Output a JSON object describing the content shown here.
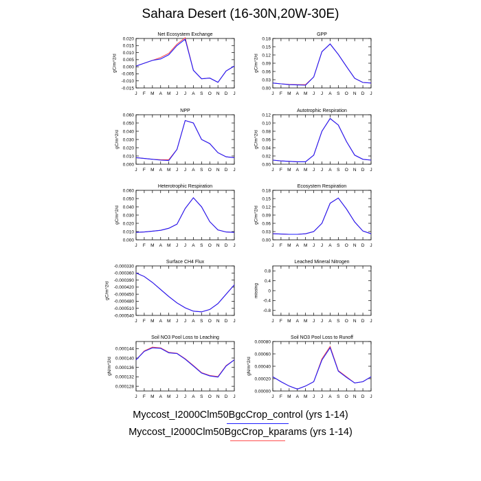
{
  "title": "Sahara Desert (16-30N,20W-30E)",
  "legend": [
    {
      "label": "Myccost_I2000Clm50BgcCrop_control (yrs 1-14)",
      "color": "#1a1aff"
    },
    {
      "label": "Myccost_I2000Clm50BgcCrop_kparams (yrs 1-14)",
      "color": "#ff4d4d"
    }
  ],
  "chart_data": [
    {
      "type": "line",
      "title": "Net Ecosystem Exchange",
      "ylabel": "gC/m^2/d",
      "categories": [
        "J",
        "F",
        "M",
        "A",
        "M",
        "J",
        "J",
        "A",
        "S",
        "O",
        "N",
        "D",
        "J"
      ],
      "ylim": [
        -0.015,
        0.02
      ],
      "yticks": [
        0.02,
        0.015,
        0.01,
        0.005,
        0.0,
        -0.005,
        -0.01,
        -0.015
      ],
      "ytick_labels": [
        "0.020",
        "0.015",
        "0.010",
        "0.005",
        "0.000",
        "-0.005",
        "-0.010",
        "-0.015"
      ],
      "series": [
        {
          "values": [
            0.0005,
            0.0025,
            0.0045,
            0.0055,
            0.0085,
            0.015,
            0.0195,
            -0.0025,
            -0.0085,
            -0.008,
            -0.011,
            -0.003,
            0.0005
          ]
        },
        {
          "values": [
            0.0005,
            0.0025,
            0.0045,
            0.0065,
            0.0095,
            0.016,
            0.0205,
            -0.0025,
            -0.0085,
            -0.008,
            -0.011,
            -0.003,
            0.0005
          ]
        }
      ]
    },
    {
      "type": "line",
      "title": "GPP",
      "ylabel": "gC/m^2/d",
      "categories": [
        "J",
        "F",
        "M",
        "A",
        "M",
        "J",
        "J",
        "A",
        "S",
        "O",
        "N",
        "D",
        "J"
      ],
      "ylim": [
        0,
        0.18
      ],
      "yticks": [
        0.18,
        0.15,
        0.12,
        0.09,
        0.06,
        0.03,
        0.0
      ],
      "ytick_labels": [
        "0.18",
        "0.15",
        "0.12",
        "0.09",
        "0.06",
        "0.03",
        "0.00"
      ],
      "series": [
        {
          "values": [
            0.018,
            0.015,
            0.012,
            0.011,
            0.01,
            0.04,
            0.132,
            0.16,
            0.122,
            0.078,
            0.035,
            0.02,
            0.018
          ]
        },
        {
          "values": [
            0.018,
            0.015,
            0.013,
            0.012,
            0.012,
            0.04,
            0.132,
            0.16,
            0.122,
            0.078,
            0.035,
            0.02,
            0.018
          ]
        }
      ]
    },
    {
      "type": "line",
      "title": "NPP",
      "ylabel": "gC/m^2/d",
      "categories": [
        "J",
        "F",
        "M",
        "A",
        "M",
        "J",
        "J",
        "A",
        "S",
        "O",
        "N",
        "D",
        "J"
      ],
      "ylim": [
        0,
        0.06
      ],
      "yticks": [
        0.06,
        0.05,
        0.04,
        0.03,
        0.02,
        0.01,
        0.0
      ],
      "ytick_labels": [
        "0.060",
        "0.050",
        "0.040",
        "0.030",
        "0.020",
        "0.010",
        "0.000"
      ],
      "series": [
        {
          "values": [
            0.008,
            0.007,
            0.006,
            0.005,
            0.0045,
            0.018,
            0.053,
            0.05,
            0.03,
            0.025,
            0.014,
            0.009,
            0.008
          ]
        },
        {
          "values": [
            0.008,
            0.007,
            0.006,
            0.0055,
            0.0055,
            0.018,
            0.053,
            0.05,
            0.03,
            0.025,
            0.014,
            0.009,
            0.008
          ]
        }
      ]
    },
    {
      "type": "line",
      "title": "Autotrophic Respiration",
      "ylabel": "gC/m^2/d",
      "categories": [
        "J",
        "F",
        "M",
        "A",
        "M",
        "J",
        "J",
        "A",
        "S",
        "O",
        "N",
        "D",
        "J"
      ],
      "ylim": [
        0,
        0.12
      ],
      "yticks": [
        0.12,
        0.1,
        0.08,
        0.06,
        0.04,
        0.02,
        0.0
      ],
      "ytick_labels": [
        "0.12",
        "0.10",
        "0.08",
        "0.06",
        "0.04",
        "0.02",
        "0.00"
      ],
      "series": [
        {
          "values": [
            0.01,
            0.008,
            0.007,
            0.006,
            0.006,
            0.022,
            0.08,
            0.111,
            0.095,
            0.055,
            0.022,
            0.012,
            0.01
          ]
        },
        {
          "values": [
            0.01,
            0.008,
            0.007,
            0.006,
            0.006,
            0.022,
            0.08,
            0.111,
            0.095,
            0.055,
            0.022,
            0.012,
            0.01
          ]
        }
      ]
    },
    {
      "type": "line",
      "title": "Heterotrophic Respiration",
      "ylabel": "gC/m^2/d",
      "categories": [
        "J",
        "F",
        "M",
        "A",
        "M",
        "J",
        "J",
        "A",
        "S",
        "O",
        "N",
        "D",
        "J"
      ],
      "ylim": [
        0,
        0.06
      ],
      "yticks": [
        0.06,
        0.05,
        0.04,
        0.03,
        0.02,
        0.01,
        0.0
      ],
      "ytick_labels": [
        "0.060",
        "0.050",
        "0.040",
        "0.030",
        "0.020",
        "0.010",
        "0.000"
      ],
      "series": [
        {
          "values": [
            0.009,
            0.0095,
            0.0105,
            0.0115,
            0.014,
            0.019,
            0.038,
            0.051,
            0.04,
            0.022,
            0.012,
            0.0095,
            0.009
          ]
        },
        {
          "values": [
            0.009,
            0.0095,
            0.0105,
            0.0115,
            0.014,
            0.019,
            0.038,
            0.051,
            0.04,
            0.022,
            0.012,
            0.0095,
            0.009
          ]
        }
      ]
    },
    {
      "type": "line",
      "title": "Ecosystem Respiration",
      "ylabel": "gC/m^2/d",
      "categories": [
        "J",
        "F",
        "M",
        "A",
        "M",
        "J",
        "J",
        "A",
        "S",
        "O",
        "N",
        "D",
        "J"
      ],
      "ylim": [
        0,
        0.18
      ],
      "yticks": [
        0.18,
        0.15,
        0.12,
        0.09,
        0.06,
        0.03,
        0.0
      ],
      "ytick_labels": [
        "0.18",
        "0.15",
        "0.12",
        "0.09",
        "0.06",
        "0.03",
        "0.00"
      ],
      "series": [
        {
          "values": [
            0.022,
            0.021,
            0.02,
            0.02,
            0.022,
            0.03,
            0.06,
            0.133,
            0.152,
            0.112,
            0.065,
            0.032,
            0.022
          ]
        },
        {
          "values": [
            0.022,
            0.021,
            0.02,
            0.02,
            0.022,
            0.03,
            0.06,
            0.133,
            0.152,
            0.112,
            0.065,
            0.032,
            0.022
          ]
        }
      ]
    },
    {
      "type": "line",
      "title": "Surface CH4 Flux",
      "ylabel": "gC/m^2/d",
      "categories": [
        "J",
        "F",
        "M",
        "A",
        "M",
        "J",
        "J",
        "A",
        "S",
        "O",
        "N",
        "D",
        "J"
      ],
      "ylim": [
        -0.00054,
        -0.00033
      ],
      "yticks": [
        -0.00033,
        -0.00036,
        -0.00039,
        -0.00042,
        -0.00045,
        -0.00048,
        -0.00051,
        -0.00054
      ],
      "ytick_labels": [
        "-0.000330",
        "-0.000360",
        "-0.000390",
        "-0.000420",
        "-0.000450",
        "-0.000480",
        "-0.000510",
        "-0.000540"
      ],
      "series": [
        {
          "values": [
            -0.00036,
            -0.000375,
            -0.0004,
            -0.00043,
            -0.00046,
            -0.000487,
            -0.000508,
            -0.000522,
            -0.000525,
            -0.000515,
            -0.00049,
            -0.00045,
            -0.00041
          ]
        },
        {
          "values": [
            -0.00036,
            -0.000375,
            -0.0004,
            -0.00043,
            -0.00046,
            -0.000487,
            -0.000508,
            -0.000522,
            -0.000525,
            -0.000515,
            -0.00049,
            -0.00045,
            -0.00041
          ]
        }
      ],
      "x_anchor_offset": -1
    },
    {
      "type": "line",
      "title": "Leached Mineral Nitrogen",
      "ylabel": "missing",
      "categories": [
        "J",
        "F",
        "M",
        "A",
        "M",
        "J",
        "J",
        "A",
        "S",
        "O",
        "N",
        "D",
        "J"
      ],
      "ylim": [
        -1,
        1
      ],
      "yticks": [
        0.8,
        0.4,
        0,
        -0.4,
        -0.8
      ],
      "ytick_labels": [
        "0.8",
        "0.4",
        "0",
        "-0.4",
        "-0.8"
      ],
      "series": []
    },
    {
      "type": "line",
      "title": "Soil NO3 Pool Loss to Leaching",
      "ylabel": "gN/m^2/d",
      "categories": [
        "J",
        "F",
        "M",
        "A",
        "M",
        "J",
        "J",
        "A",
        "S",
        "O",
        "N",
        "D",
        "J"
      ],
      "ylim": [
        0.000126,
        0.000147
      ],
      "yticks": [
        0.000144,
        0.00014,
        0.000136,
        0.000132,
        0.000128
      ],
      "ytick_labels": [
        "0.000144",
        "0.000140",
        "0.000136",
        "0.000132",
        "0.000128"
      ],
      "series": [
        {
          "values": [
            0.0001392,
            0.0001428,
            0.0001443,
            0.0001441,
            0.0001422,
            0.0001419,
            0.0001395,
            0.0001366,
            0.0001336,
            0.0001324,
            0.0001319,
            0.0001366,
            0.0001392
          ]
        },
        {
          "values": [
            0.0001392,
            0.000143,
            0.0001446,
            0.0001443,
            0.0001424,
            0.000142,
            0.0001397,
            0.0001368,
            0.0001338,
            0.0001326,
            0.0001321,
            0.0001368,
            0.0001392
          ]
        }
      ]
    },
    {
      "type": "line",
      "title": "Soil NO3 Pool Loss to Runoff",
      "ylabel": "gN/m^2/d",
      "categories": [
        "J",
        "F",
        "M",
        "A",
        "M",
        "J",
        "J",
        "A",
        "S",
        "O",
        "N",
        "D",
        "J"
      ],
      "ylim": [
        0,
        0.0008
      ],
      "yticks": [
        0.0008,
        0.0006,
        0.0004,
        0.0002,
        0.0
      ],
      "ytick_labels": [
        "0.00080",
        "0.00060",
        "0.00040",
        "0.00020",
        "0.00000"
      ],
      "series": [
        {
          "values": [
            0.00023,
            0.00015,
            8e-05,
            3e-05,
            8e-05,
            0.00015,
            0.0005,
            0.0007,
            0.00032,
            0.00022,
            0.00013,
            0.00015,
            0.00023
          ]
        },
        {
          "values": [
            0.00023,
            0.00015,
            8e-05,
            3e-05,
            8e-05,
            0.00015,
            0.00052,
            0.00072,
            0.00033,
            0.00023,
            0.00013,
            0.00015,
            0.00023
          ]
        }
      ]
    }
  ]
}
